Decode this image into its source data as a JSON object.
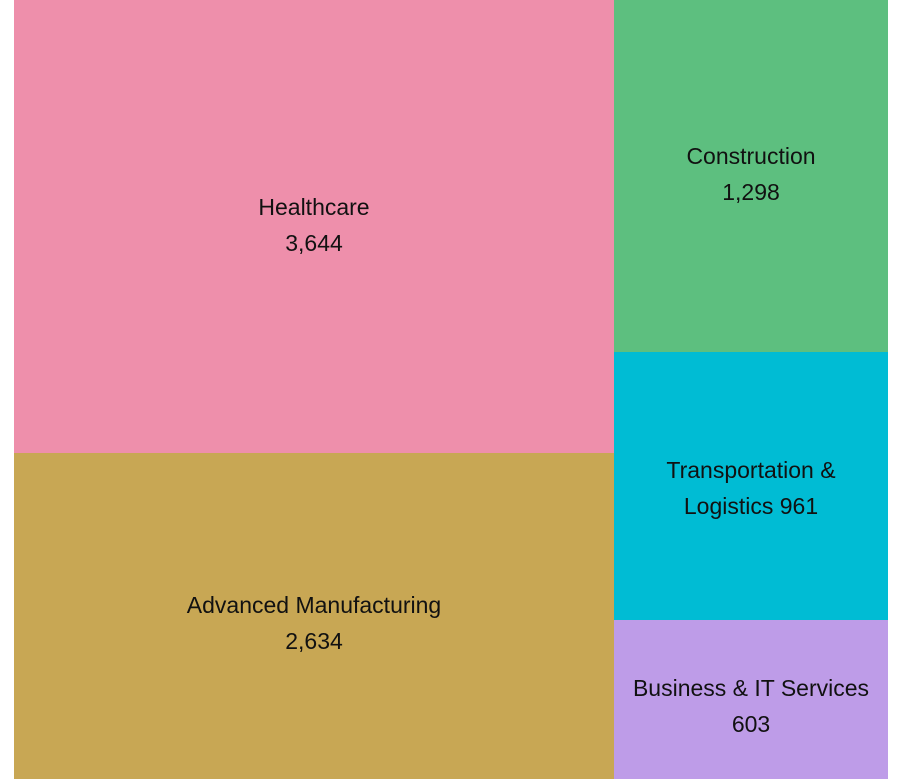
{
  "chart_data": {
    "type": "treemap",
    "items": [
      {
        "name": "Healthcare",
        "value": 3644,
        "value_label": "3,644",
        "color": "#EE8FAB"
      },
      {
        "name": "Advanced Manufacturing",
        "value": 2634,
        "value_label": "2,634",
        "color": "#C8A754"
      },
      {
        "name": "Construction",
        "value": 1298,
        "value_label": "1,298",
        "color": "#5DBF7F"
      },
      {
        "name": "Transportation & Logistics",
        "value": 961,
        "value_label": "961",
        "color": "#00BCD4",
        "label_lines": [
          "Transportation &",
          "Logistics 961"
        ]
      },
      {
        "name": "Business & IT Services",
        "value": 603,
        "value_label": "603",
        "color": "#BE9CE8"
      }
    ]
  }
}
